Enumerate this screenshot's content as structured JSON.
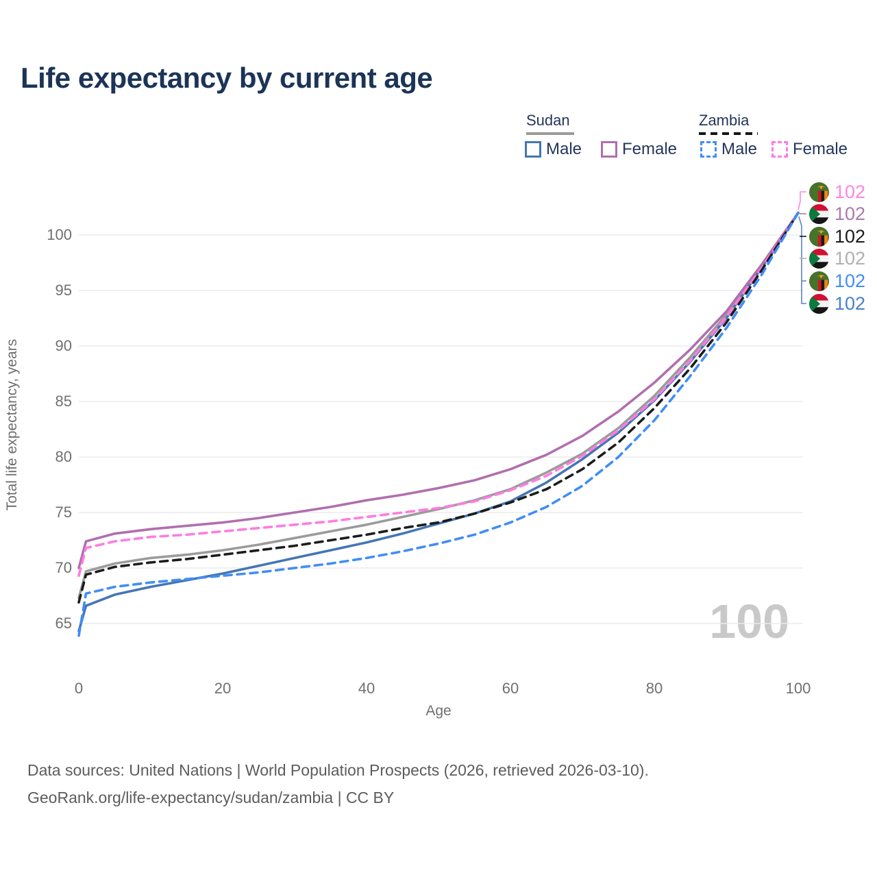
{
  "title": "Life expectancy by current age",
  "watermark_age": "100",
  "legend": {
    "groups": [
      {
        "name": "Sudan",
        "line_style": "solid",
        "underline_color": "#9b9b9b",
        "items": [
          {
            "label": "Male",
            "color": "#4476b4"
          },
          {
            "label": "Female",
            "color": "#b06fae"
          }
        ]
      },
      {
        "name": "Zambia",
        "line_style": "dashed",
        "underline_color": "#161616",
        "items": [
          {
            "label": "Male",
            "color": "#418df6"
          },
          {
            "label": "Female",
            "color": "#ff7ce0"
          }
        ]
      }
    ]
  },
  "chart_data": {
    "type": "line",
    "title": "Life expectancy by current age",
    "xlabel": "Age",
    "ylabel": "Total life expectancy, years",
    "x_ticks": [
      0,
      20,
      40,
      60,
      80,
      100
    ],
    "y_ticks": [
      65,
      70,
      75,
      80,
      85,
      90,
      95,
      100
    ],
    "xlim": [
      0,
      100
    ],
    "ylim": [
      63.5,
      103.5
    ],
    "grid": "horizontal-only",
    "legend_position": "top-right",
    "x": [
      0,
      1,
      5,
      10,
      15,
      20,
      25,
      30,
      35,
      40,
      45,
      50,
      55,
      60,
      65,
      70,
      75,
      80,
      85,
      90,
      95,
      100
    ],
    "series": [
      {
        "id": "sudan-female",
        "name": "Sudan Female",
        "color": "#b06fae",
        "dash": false,
        "values": [
          70.0,
          72.4,
          73.1,
          73.5,
          73.8,
          74.1,
          74.5,
          75.0,
          75.5,
          76.1,
          76.6,
          77.2,
          77.9,
          78.9,
          80.2,
          81.9,
          84.1,
          86.7,
          89.7,
          93.1,
          97.4,
          102
        ]
      },
      {
        "id": "zambia-female",
        "name": "Zambia Female",
        "color": "#ff7ce0",
        "dash": true,
        "values": [
          69.3,
          71.8,
          72.4,
          72.8,
          73.0,
          73.3,
          73.6,
          73.9,
          74.2,
          74.6,
          75.0,
          75.4,
          76.0,
          77.0,
          78.3,
          80.1,
          82.4,
          85.2,
          88.7,
          92.6,
          97.1,
          102
        ]
      },
      {
        "id": "sudan-total",
        "name": "Sudan",
        "color": "#9b9b9b",
        "dash": false,
        "values": [
          67.3,
          69.7,
          70.4,
          70.9,
          71.2,
          71.6,
          72.1,
          72.7,
          73.3,
          73.9,
          74.6,
          75.3,
          76.1,
          77.1,
          78.6,
          80.3,
          82.6,
          85.5,
          89.0,
          92.8,
          97.2,
          102
        ]
      },
      {
        "id": "zambia-total",
        "name": "Zambia",
        "color": "#1c1c1c",
        "dash": true,
        "values": [
          66.9,
          69.4,
          70.1,
          70.5,
          70.8,
          71.2,
          71.6,
          72.0,
          72.5,
          73.0,
          73.6,
          74.1,
          74.9,
          75.9,
          77.1,
          78.9,
          81.3,
          84.4,
          88.0,
          92.1,
          96.9,
          102
        ]
      },
      {
        "id": "sudan-male",
        "name": "Sudan Male",
        "color": "#4476b4",
        "dash": false,
        "values": [
          64.3,
          66.6,
          67.6,
          68.3,
          68.9,
          69.5,
          70.2,
          70.9,
          71.6,
          72.3,
          73.1,
          74.0,
          74.9,
          76.0,
          77.7,
          79.8,
          82.2,
          85.1,
          88.6,
          92.5,
          97.1,
          102
        ]
      },
      {
        "id": "zambia-male",
        "name": "Zambia Male",
        "color": "#418df6",
        "dash": true,
        "values": [
          63.9,
          67.7,
          68.3,
          68.7,
          69.0,
          69.3,
          69.6,
          70.0,
          70.4,
          70.9,
          71.5,
          72.2,
          73.0,
          74.1,
          75.5,
          77.4,
          80.0,
          83.3,
          87.3,
          91.6,
          96.5,
          102
        ]
      }
    ],
    "end_labels": [
      {
        "text": "102",
        "color": "#ff85e3",
        "flag": "zambia",
        "series": "zambia-female"
      },
      {
        "text": "102",
        "color": "#a87ba9",
        "flag": "sudan",
        "series": "sudan-female"
      },
      {
        "text": "102",
        "color": "#1c1c1c",
        "flag": "zambia",
        "series": "zambia-total"
      },
      {
        "text": "102",
        "color": "#b0b0b0",
        "flag": "sudan",
        "series": "sudan-total"
      },
      {
        "text": "102",
        "color": "#418df6",
        "flag": "zambia",
        "series": "zambia-male"
      },
      {
        "text": "102",
        "color": "#4a80c8",
        "flag": "sudan",
        "series": "sudan-male"
      }
    ]
  },
  "footer": {
    "line1": "Data sources: United Nations | World Population Prospects (2026, retrieved 2026-03-10).",
    "line2": "GeoRank.org/life-expectancy/sudan/zambia | CC BY"
  }
}
